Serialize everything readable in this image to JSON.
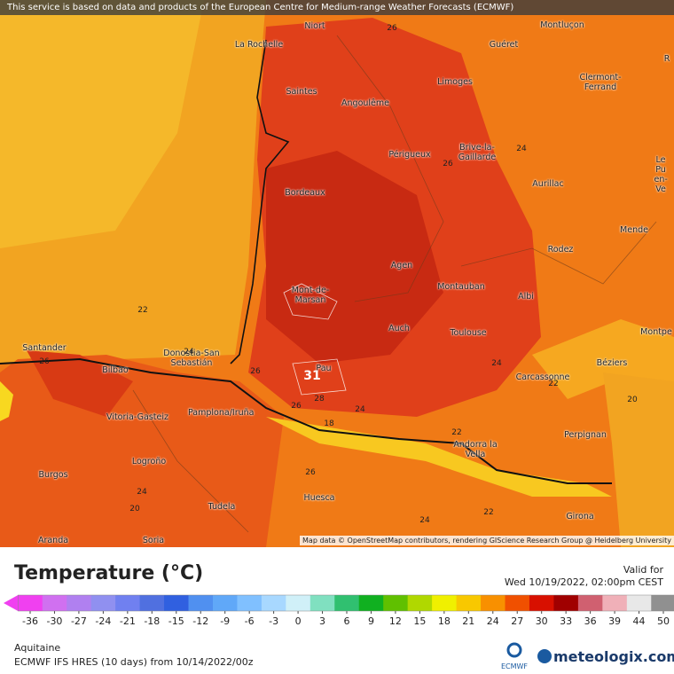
{
  "map": {
    "attribution_top": "This service is based on data and products of the European Centre for Medium-range Weather Forecasts (ECMWF)",
    "attribution_bottom": "Map data © OpenStreetMap contributors, rendering GIScience Research Group @ Heidelberg University",
    "cities": [
      "Niort",
      "La Rochelle",
      "Saintes",
      "Angoulême",
      "Limoges",
      "Guéret",
      "Montluçon",
      "Clermont-Ferrand",
      "Brive-la-Gaillarde",
      "Périgueux",
      "Bordeaux",
      "Aurillac",
      "Le Pu en-Ve",
      "Mende",
      "Rodez",
      "Agen",
      "Mont-de-Marsan",
      "Montauban",
      "Albi",
      "Auch",
      "Toulouse",
      "Montpe",
      "Béziers",
      "Carcassonne",
      "Santander",
      "Bilbao",
      "Donostia-San Sebastián",
      "Pau",
      "Vitoria-Gasteiz",
      "Pamplona/Iruña",
      "Andorra la Vella",
      "Perpignan",
      "Logroño",
      "Burgos",
      "Huesca",
      "Tudela",
      "Girona",
      "Aranda",
      "Soria",
      "R"
    ],
    "contour_labels": [
      26,
      24,
      26,
      22,
      24,
      26,
      26,
      31,
      28,
      26,
      24,
      18,
      22,
      24,
      22,
      20,
      26,
      24,
      20,
      24,
      22
    ]
  },
  "legend": {
    "title": "Temperature (°C)",
    "valid_label": "Valid for",
    "valid_time": "Wed 10/19/2022, 02:00pm CEST",
    "ticks": [
      -36,
      -30,
      -27,
      -24,
      -21,
      -18,
      -15,
      -12,
      -9,
      -6,
      -3,
      0,
      3,
      6,
      9,
      12,
      15,
      18,
      21,
      24,
      27,
      30,
      33,
      36,
      39,
      44,
      50
    ],
    "colors": [
      "#f040f0",
      "#d070f0",
      "#b080f0",
      "#9090f0",
      "#7080f0",
      "#5070e0",
      "#3060e0",
      "#5090f0",
      "#60a8f8",
      "#80c0ff",
      "#a8d8ff",
      "#d0f0f8",
      "#80e0c0",
      "#30c070",
      "#10b020",
      "#60c000",
      "#b0d800",
      "#f0f000",
      "#f8c800",
      "#f89000",
      "#f05000",
      "#d81000",
      "#a00000",
      "#d06070",
      "#f0b0b8",
      "#e8e8e8",
      "#909090"
    ],
    "region": "Aquitaine",
    "model": "ECMWF IFS HRES (10 days) from 10/14/2022/00z",
    "logo_ecmwf": "ECMWF",
    "logo_site": "meteologix.com"
  }
}
